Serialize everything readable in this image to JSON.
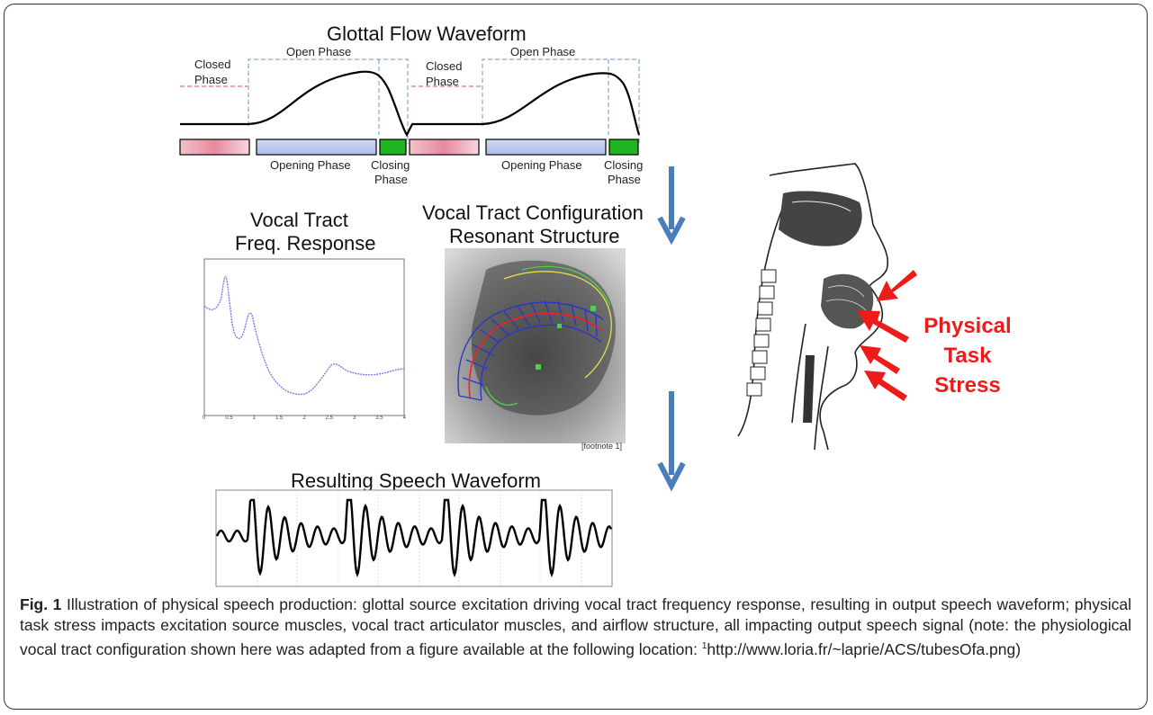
{
  "glottal": {
    "title": "Glottal Flow Waveform",
    "closed_phase_1": [
      "Closed",
      "Phase"
    ],
    "open_phase_1": "Open  Phase",
    "closed_phase_2": [
      "Closed",
      "Phase"
    ],
    "open_phase_2": "Open  Phase",
    "opening_phase_1": "Opening Phase",
    "closing_phase_1": [
      "Closing",
      "Phase"
    ],
    "opening_phase_2": "Opening Phase",
    "closing_phase_2": [
      "Closing",
      "Phase"
    ],
    "colors": {
      "closed": "#e8a0b0",
      "opening": "#b7c8ef",
      "closing": "#1fb520"
    }
  },
  "freq_response": {
    "title_line1": "Vocal Tract",
    "title_line2": "Freq. Response",
    "x_ticks": [
      "0",
      "0.5",
      "1",
      "1.5",
      "2",
      "2.5",
      "3",
      "3.5",
      "4"
    ]
  },
  "config": {
    "title_line1": "Vocal Tract Configuration",
    "title_line2": "Resonant Structure",
    "footnote": "[footnote 1]"
  },
  "stress": {
    "line1": "Physical",
    "line2": "Task",
    "line3": "Stress",
    "color": "#ee1b1b"
  },
  "speech": {
    "title": "Resulting Speech Waveform"
  },
  "caption": {
    "label": "Fig. 1",
    "text_1": " Illustration of physical speech production: glottal source excitation driving vocal tract frequency response, resulting in output speech waveform; physical task stress impacts excitation source muscles, vocal tract articulator muscles, and airflow structure, all impacting output speech signal (note: the physiological vocal tract configuration shown here was adapted from a figure available at the following location: ",
    "superscript": "1",
    "text_2": "http://www.loria.fr/~laprie/ACS/tubesOfa.png)"
  },
  "arrow_color": "#4a7ebb"
}
